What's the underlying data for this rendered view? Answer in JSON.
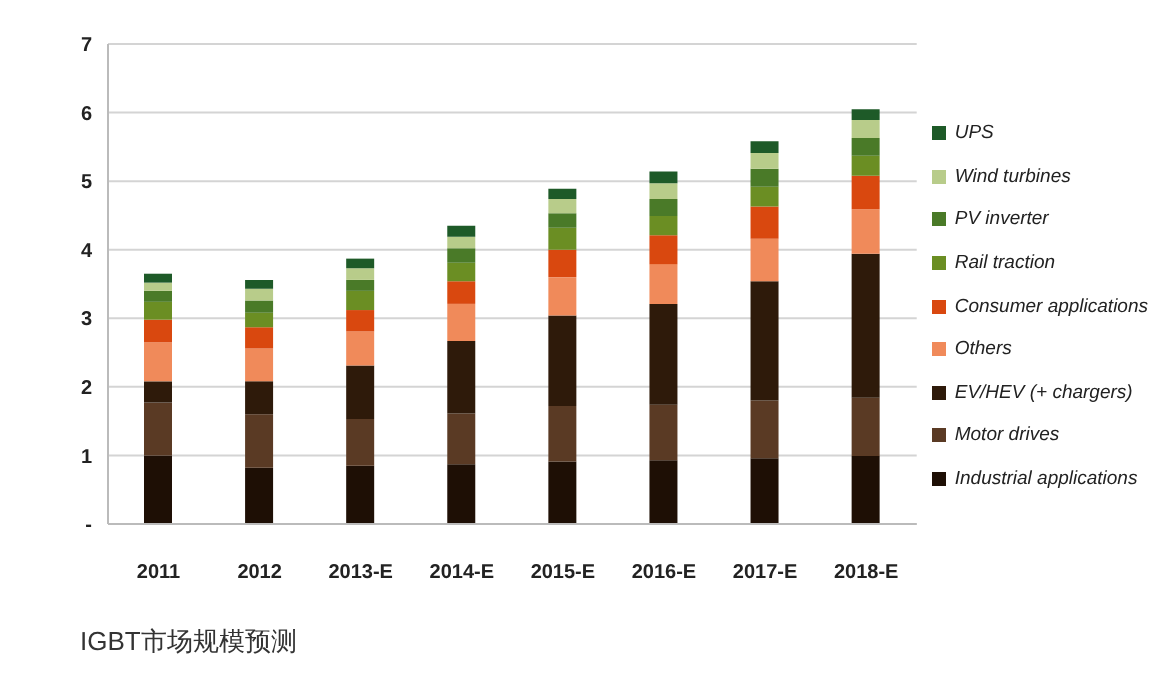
{
  "chart_data": {
    "type": "bar",
    "stacked": true,
    "categories": [
      "2011",
      "2012",
      "2013-E",
      "2014-E",
      "2015-E",
      "2016-E",
      "2017-E",
      "2018-E"
    ],
    "series": [
      {
        "name": "Industrial applications",
        "color": "#1e0f05",
        "values": [
          1.0,
          0.82,
          0.85,
          0.87,
          0.91,
          0.93,
          0.96,
          0.99
        ]
      },
      {
        "name": "Motor drives",
        "color": "#5a3a24",
        "values": [
          0.77,
          0.78,
          0.68,
          0.74,
          0.81,
          0.81,
          0.84,
          0.85
        ]
      },
      {
        "name": "EV/HEV (+ chargers)",
        "color": "#2e1a0a",
        "values": [
          0.31,
          0.48,
          0.78,
          1.06,
          1.32,
          1.47,
          1.74,
          2.1
        ]
      },
      {
        "name": "Others",
        "color": "#f08a5a",
        "values": [
          0.57,
          0.48,
          0.5,
          0.54,
          0.56,
          0.58,
          0.62,
          0.65
        ]
      },
      {
        "name": "Consumer applications",
        "color": "#d9480f",
        "values": [
          0.33,
          0.31,
          0.31,
          0.33,
          0.4,
          0.42,
          0.47,
          0.49
        ]
      },
      {
        "name": "Rail traction",
        "color": "#6b8e23",
        "values": [
          0.26,
          0.21,
          0.28,
          0.27,
          0.32,
          0.28,
          0.29,
          0.29
        ]
      },
      {
        "name": "PV inverter",
        "color": "#4a7a28",
        "values": [
          0.16,
          0.18,
          0.16,
          0.21,
          0.21,
          0.25,
          0.26,
          0.26
        ]
      },
      {
        "name": "Wind turbines",
        "color": "#b8cc8a",
        "values": [
          0.12,
          0.17,
          0.17,
          0.17,
          0.21,
          0.23,
          0.23,
          0.26
        ]
      },
      {
        "name": "UPS",
        "color": "#1e5a28",
        "values": [
          0.13,
          0.13,
          0.14,
          0.16,
          0.15,
          0.17,
          0.17,
          0.16
        ]
      }
    ],
    "ylim": [
      0,
      7
    ],
    "yticks": [
      {
        "value": 0,
        "label": "-"
      },
      1,
      2,
      3,
      4,
      5,
      6,
      7
    ],
    "grid": "y",
    "legend": "right",
    "annotations": [
      "IGBT市场规模预测"
    ]
  }
}
